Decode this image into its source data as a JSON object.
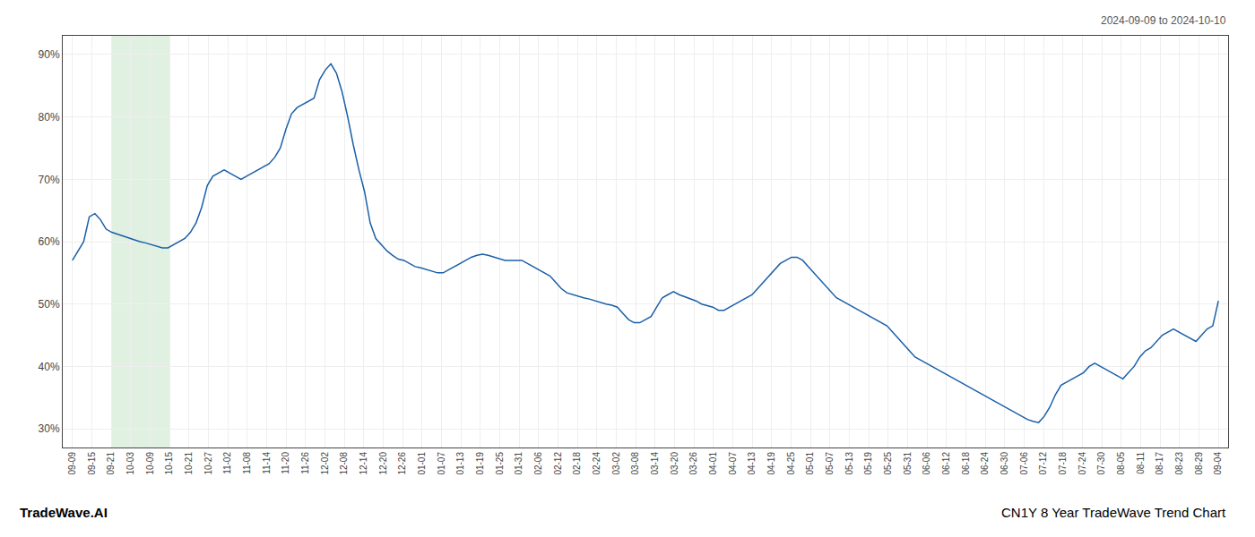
{
  "chart_data": {
    "type": "line",
    "annotations": [
      "2024-09-09 to 2024-10-10",
      "TradeWave.AI",
      "CN1Y 8 Year TradeWave Trend Chart"
    ],
    "color": "#1a5fa8",
    "grid": true,
    "shaded_region": {
      "x": [
        2,
        5
      ],
      "color": "#c8e6c9"
    },
    "xlim": [
      -0.5,
      59.5
    ],
    "xticks": [
      {
        "value": 0,
        "label": "09-09"
      },
      {
        "value": 1,
        "label": "09-15"
      },
      {
        "value": 2,
        "label": "09-21"
      },
      {
        "value": 3,
        "label": "10-03"
      },
      {
        "value": 4,
        "label": "10-09"
      },
      {
        "value": 5,
        "label": "10-15"
      },
      {
        "value": 6,
        "label": "10-21"
      },
      {
        "value": 7,
        "label": "10-27"
      },
      {
        "value": 8,
        "label": "11-02"
      },
      {
        "value": 9,
        "label": "11-08"
      },
      {
        "value": 10,
        "label": "11-14"
      },
      {
        "value": 11,
        "label": "11-20"
      },
      {
        "value": 12,
        "label": "11-26"
      },
      {
        "value": 13,
        "label": "12-02"
      },
      {
        "value": 14,
        "label": "12-08"
      },
      {
        "value": 15,
        "label": "12-14"
      },
      {
        "value": 16,
        "label": "12-20"
      },
      {
        "value": 17,
        "label": "12-26"
      },
      {
        "value": 18,
        "label": "01-01"
      },
      {
        "value": 19,
        "label": "01-07"
      },
      {
        "value": 20,
        "label": "01-13"
      },
      {
        "value": 21,
        "label": "01-19"
      },
      {
        "value": 22,
        "label": "01-25"
      },
      {
        "value": 23,
        "label": "01-31"
      },
      {
        "value": 24,
        "label": "02-06"
      },
      {
        "value": 25,
        "label": "02-12"
      },
      {
        "value": 26,
        "label": "02-18"
      },
      {
        "value": 27,
        "label": "02-24"
      },
      {
        "value": 28,
        "label": "03-02"
      },
      {
        "value": 29,
        "label": "03-08"
      },
      {
        "value": 30,
        "label": "03-14"
      },
      {
        "value": 31,
        "label": "03-20"
      },
      {
        "value": 32,
        "label": "03-26"
      },
      {
        "value": 33,
        "label": "04-01"
      },
      {
        "value": 34,
        "label": "04-07"
      },
      {
        "value": 35,
        "label": "04-13"
      },
      {
        "value": 36,
        "label": "04-19"
      },
      {
        "value": 37,
        "label": "04-25"
      },
      {
        "value": 38,
        "label": "05-01"
      },
      {
        "value": 39,
        "label": "05-07"
      },
      {
        "value": 40,
        "label": "05-13"
      },
      {
        "value": 41,
        "label": "05-19"
      },
      {
        "value": 42,
        "label": "05-25"
      },
      {
        "value": 43,
        "label": "05-31"
      },
      {
        "value": 44,
        "label": "06-06"
      },
      {
        "value": 45,
        "label": "06-12"
      },
      {
        "value": 46,
        "label": "06-18"
      },
      {
        "value": 47,
        "label": "06-24"
      },
      {
        "value": 48,
        "label": "06-30"
      },
      {
        "value": 49,
        "label": "07-06"
      },
      {
        "value": 50,
        "label": "07-12"
      },
      {
        "value": 51,
        "label": "07-18"
      },
      {
        "value": 52,
        "label": "07-24"
      },
      {
        "value": 53,
        "label": "07-30"
      },
      {
        "value": 54,
        "label": "08-05"
      },
      {
        "value": 55,
        "label": "08-11"
      },
      {
        "value": 56,
        "label": "08-17"
      },
      {
        "value": 57,
        "label": "08-23"
      },
      {
        "value": 58,
        "label": "08-29"
      },
      {
        "value": 59,
        "label": "09-04"
      }
    ],
    "ylim": [
      27,
      93
    ],
    "yticks": [
      {
        "value": 30,
        "label": "30%"
      },
      {
        "value": 40,
        "label": "40%"
      },
      {
        "value": 50,
        "label": "50%"
      },
      {
        "value": 60,
        "label": "60%"
      },
      {
        "value": 70,
        "label": "70%"
      },
      {
        "value": 80,
        "label": "80%"
      },
      {
        "value": 90,
        "label": "90%"
      }
    ],
    "x": [
      0,
      0.289216,
      0.578431,
      0.867647,
      1.156863,
      1.446078,
      1.735294,
      2.02451,
      2.313725,
      2.602941,
      2.892157,
      3.181373,
      3.470588,
      3.759804,
      4.04902,
      4.338235,
      4.627451,
      4.916667,
      5.205882,
      5.495098,
      5.784314,
      6.073529,
      6.362745,
      6.651961,
      6.941176,
      7.230392,
      7.519608,
      7.808824,
      8.098039,
      8.387255,
      8.676471,
      8.965686,
      9.254902,
      9.544118,
      9.833333,
      10.122549,
      10.411765,
      10.70098,
      10.990196,
      11.279412,
      11.568627,
      11.857843,
      12.147059,
      12.436275,
      12.72549,
      13.014706,
      13.303922,
      13.593137,
      13.882353,
      14.171569,
      14.460784,
      14.75,
      15.039216,
      15.328431,
      15.617647,
      15.906863,
      16.196078,
      16.485294,
      16.77451,
      17.063725,
      17.352941,
      17.642157,
      17.931373,
      18.220588,
      18.509804,
      18.79902,
      19.088235,
      19.377451,
      19.666667,
      19.955882,
      20.245098,
      20.534314,
      20.823529,
      21.112745,
      21.401961,
      21.691176,
      21.980392,
      22.269608,
      22.558824,
      22.848039,
      23.137255,
      23.426471,
      23.715686,
      24.004902,
      24.294118,
      24.583333,
      24.872549,
      25.161765,
      25.45098,
      25.740196,
      26.029412,
      26.318627,
      26.607843,
      26.897059,
      27.186275,
      27.47549,
      27.764706,
      28.053922,
      28.343137,
      28.632353,
      28.921569,
      29.210784,
      29.5,
      29.789216,
      30.078431,
      30.367647,
      30.656863,
      30.946078,
      31.235294,
      31.52451,
      31.813725,
      32.102941,
      32.392157,
      32.681373,
      32.970588,
      33.259804,
      33.54902,
      33.838235,
      34.127451,
      34.416667,
      34.705882,
      34.995098,
      35.284314,
      35.573529,
      35.862745,
      36.151961,
      36.441176,
      36.730392,
      37.019608,
      37.308824,
      37.598039,
      37.887255,
      38.176471,
      38.465686,
      38.754902,
      39.044118,
      39.333333,
      39.622549,
      39.911765,
      40.20098,
      40.490196,
      40.779412,
      41.068627,
      41.357843,
      41.647059,
      41.936275,
      42.22549,
      42.514706,
      42.803922,
      43.093137,
      43.382353,
      43.671569,
      43.960784,
      44.25,
      44.539216,
      44.828431,
      45.117647,
      45.406863,
      45.696078,
      45.985294,
      46.27451,
      46.563725,
      46.852941,
      47.142157,
      47.431373,
      47.720588,
      48.009804,
      48.29902,
      48.588235,
      48.877451,
      49.166667,
      49.455882,
      49.745098,
      50.034314,
      50.323529,
      50.612745,
      50.901961,
      51.191176,
      51.480392,
      51.769608,
      52.058824,
      52.348039,
      52.637255,
      52.926471,
      53.215686,
      53.504902,
      53.794118,
      54.083333,
      54.372549,
      54.661765,
      54.95098,
      55.240196,
      55.529412,
      55.818627,
      56.107843,
      56.397059,
      56.686275,
      56.97549,
      57.264706,
      57.553922,
      57.843137,
      58.132353,
      58.421569,
      58.710784,
      59
    ],
    "values": [
      57.0,
      58.5,
      60.0,
      64.0,
      64.5,
      63.5,
      62.0,
      61.5,
      61.2,
      60.8,
      60.5,
      60.2,
      60.0,
      59.8,
      59.5,
      59.2,
      59.0,
      59.0,
      59.5,
      60.0,
      60.5,
      61.5,
      63.0,
      65.5,
      69.0,
      70.5,
      71.0,
      71.5,
      71.0,
      70.5,
      70.0,
      70.5,
      71.0,
      71.5,
      72.0,
      72.5,
      73.5,
      75.0,
      78.0,
      80.5,
      81.5,
      82.0,
      82.5,
      83.0,
      86.0,
      87.5,
      88.5,
      87.0,
      84.0,
      80.0,
      75.5,
      71.5,
      68.0,
      63.0,
      60.5,
      59.5,
      58.5,
      57.8,
      57.2,
      57.0,
      56.5,
      56.0,
      55.8,
      55.5,
      55.2,
      55.0,
      55.0,
      55.5,
      56.0,
      56.5,
      57.0,
      57.5,
      57.8,
      58.0,
      57.8,
      57.5,
      57.2,
      57.0,
      57.0,
      57.0,
      57.0,
      56.5,
      56.0,
      55.5,
      55.0,
      54.5,
      53.5,
      52.5,
      51.8,
      51.5,
      51.2,
      51.0,
      50.8,
      50.5,
      50.2,
      50.0,
      49.8,
      49.5,
      48.5,
      47.5,
      47.0,
      47.0,
      47.5,
      48.0,
      49.5,
      51.0,
      51.5,
      52.0,
      51.5,
      51.2,
      50.8,
      50.5,
      50.0,
      49.8,
      49.5,
      49.0,
      49.0,
      49.5,
      50.0,
      50.5,
      51.0,
      51.5,
      52.5,
      53.5,
      54.5,
      55.5,
      56.5,
      57.0,
      57.5,
      57.5,
      57.0,
      56.0,
      55.0,
      54.0,
      53.0,
      52.0,
      51.0,
      50.5,
      50.0,
      49.5,
      49.0,
      48.5,
      48.0,
      47.5,
      47.0,
      46.5,
      45.5,
      44.5,
      43.5,
      42.5,
      41.5,
      41.0,
      40.5,
      40.0,
      39.5,
      39.0,
      38.5,
      38.0,
      37.5,
      37.0,
      36.5,
      36.0,
      35.5,
      35.0,
      34.5,
      34.0,
      33.5,
      33.0,
      32.5,
      32.0,
      31.5,
      31.2,
      31.0,
      32.0,
      33.5,
      35.5,
      37.0,
      37.5,
      38.0,
      38.5,
      39.0,
      40.0,
      40.5,
      40.0,
      39.5,
      39.0,
      38.5,
      38.0,
      39.0,
      40.0,
      41.5,
      42.5,
      43.0,
      44.0,
      45.0,
      45.5,
      46.0,
      45.5,
      45.0,
      44.5,
      44.0,
      45.0,
      46.0,
      46.5,
      50.5
    ]
  }
}
